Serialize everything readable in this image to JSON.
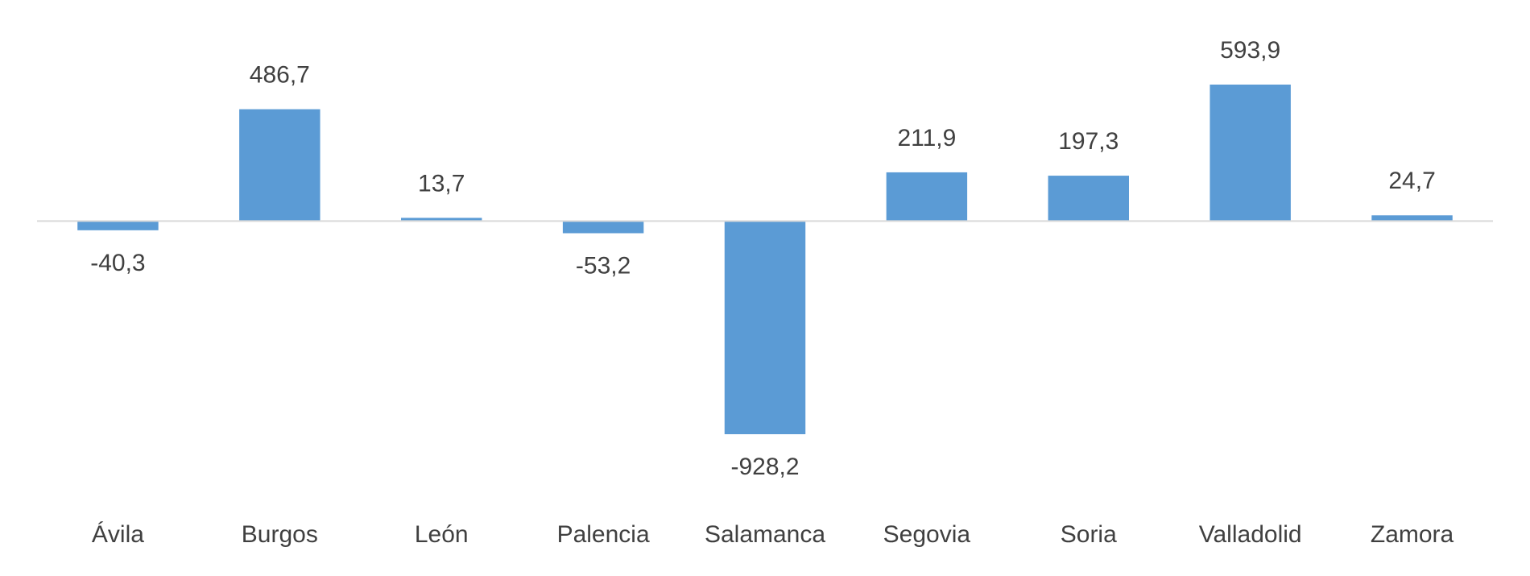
{
  "chart_data": {
    "type": "bar",
    "categories": [
      "Ávila",
      "Burgos",
      "León",
      "Palencia",
      "Salamanca",
      "Segovia",
      "Soria",
      "Valladolid",
      "Zamora"
    ],
    "values": [
      -40.3,
      486.7,
      13.7,
      -53.2,
      -928.2,
      211.9,
      197.3,
      593.9,
      24.7
    ],
    "value_labels": [
      "-40,3",
      "486,7",
      "13,7",
      "-53,2",
      "-928,2",
      "211,9",
      "197,3",
      "593,9",
      "24,7"
    ],
    "color": "#5b9bd5"
  }
}
